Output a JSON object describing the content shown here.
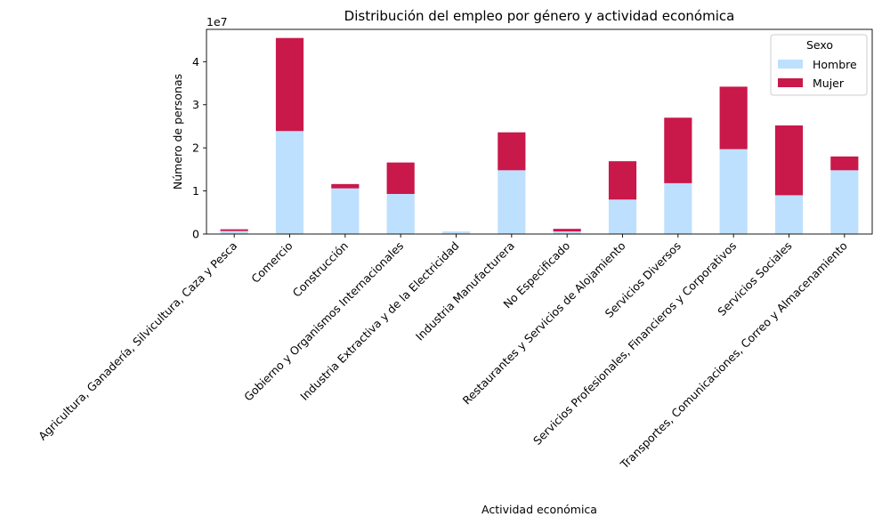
{
  "chart_data": {
    "type": "bar",
    "stacked": true,
    "title": "Distribución del empleo por género y actividad económica",
    "xlabel": "Actividad económica",
    "ylabel": "Número de personas",
    "offset_text": "1e7",
    "ylim": [
      0,
      4.75
    ],
    "yticks": [
      "0",
      "1",
      "2",
      "3",
      "4"
    ],
    "categories": [
      "Agricultura, Ganadería, Silvicultura, Caza y Pesca",
      "Comercio",
      "Construcción",
      "Gobierno y Organismos Internacionales",
      "Industria Extractiva y de la Electricidad",
      "Industria Manufacturera",
      "No Especificado",
      "Restaurantes y Servicios de Alojamiento",
      "Servicios Diversos",
      "Servicios Profesionales, Financieros y Corporativos",
      "Servicios Sociales",
      "Transportes, Comunicaciones, Correo y Almacenamiento"
    ],
    "series": [
      {
        "name": "Hombre",
        "color": "#bde0fe",
        "values": [
          0.07,
          2.39,
          1.06,
          0.93,
          0.06,
          1.48,
          0.06,
          0.8,
          1.18,
          1.97,
          0.9,
          1.48
        ]
      },
      {
        "name": "Mujer",
        "color": "#c9184a",
        "values": [
          0.04,
          2.16,
          0.1,
          0.73,
          0.0,
          0.88,
          0.06,
          0.89,
          1.52,
          1.45,
          1.62,
          0.32
        ]
      }
    ],
    "legend": {
      "title": "Sexo",
      "placement": "top-right"
    },
    "grid": false
  }
}
